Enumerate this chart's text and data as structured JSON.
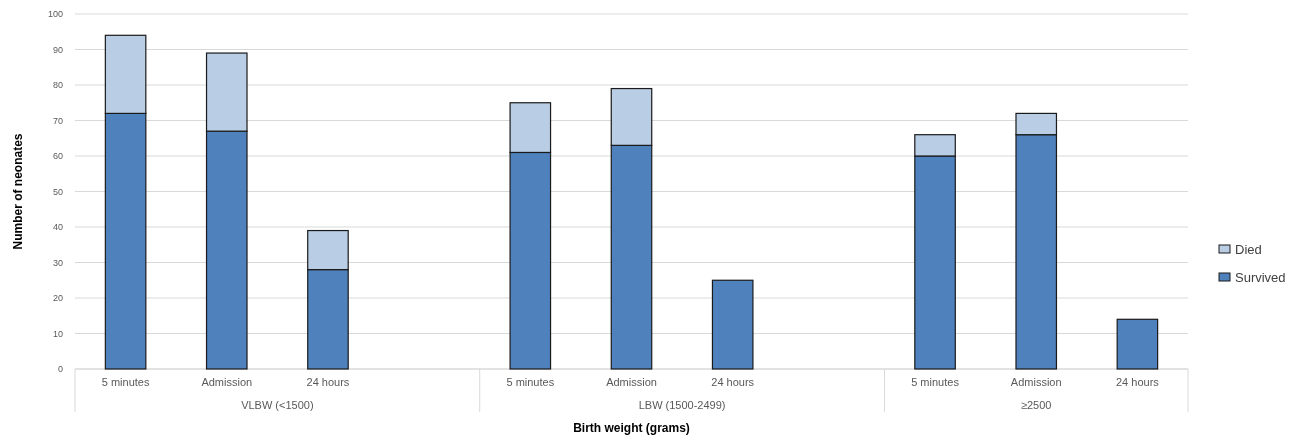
{
  "chart_data": {
    "type": "bar",
    "stacked": true,
    "xlabel": "Birth weight (grams)",
    "ylabel": "Number of neonates",
    "categories": [
      "5 minutes",
      "Admission",
      "24 hours",
      null,
      "5 minutes",
      "Admission",
      "24 hours",
      null,
      "5 minutes",
      "Admission",
      "24 hours"
    ],
    "series": [
      {
        "name": "Survived",
        "color": "#4f81bd",
        "values": [
          72,
          67,
          28,
          null,
          61,
          63,
          25,
          null,
          60,
          66,
          14
        ]
      },
      {
        "name": "Died",
        "color": "#b9cde5",
        "values": [
          22,
          22,
          11,
          null,
          14,
          16,
          0,
          null,
          6,
          6,
          0
        ]
      }
    ],
    "annotations": [
      "VLBW (<1500)",
      "LBW (1500-2499)",
      "≥2500"
    ],
    "ylim": [
      0,
      100
    ],
    "yticks": [
      0,
      10,
      20,
      30,
      40,
      50,
      60,
      70,
      80,
      90,
      100
    ],
    "grid": "y",
    "legend": "right"
  }
}
